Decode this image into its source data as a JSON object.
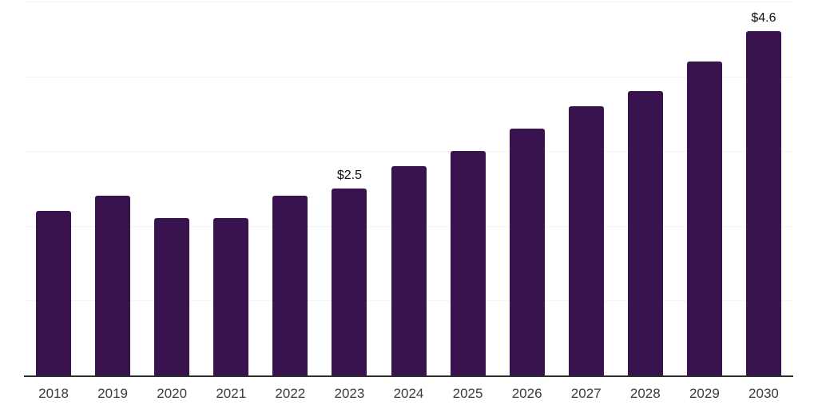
{
  "chart_data": {
    "type": "bar",
    "categories": [
      "2018",
      "2019",
      "2020",
      "2021",
      "2022",
      "2023",
      "2024",
      "2025",
      "2026",
      "2027",
      "2028",
      "2029",
      "2030"
    ],
    "values": [
      2.2,
      2.4,
      2.1,
      2.1,
      2.4,
      2.5,
      2.8,
      3.0,
      3.3,
      3.6,
      3.8,
      4.2,
      4.6
    ],
    "data_labels": {
      "2023": "$2.5",
      "2030": "$4.6"
    },
    "title": "",
    "xlabel": "",
    "ylabel": "",
    "ylim": [
      0,
      5
    ],
    "gridline_values": [
      1,
      2,
      3,
      4,
      5
    ],
    "grid": "horizontal",
    "legend": "none",
    "colors": {
      "bar": "#39134D",
      "gridline": "#f4f4f4",
      "axis": "#2e2e2e",
      "tick_label": "#3c3c3c",
      "data_label": "#111111",
      "background": "#ffffff"
    }
  }
}
